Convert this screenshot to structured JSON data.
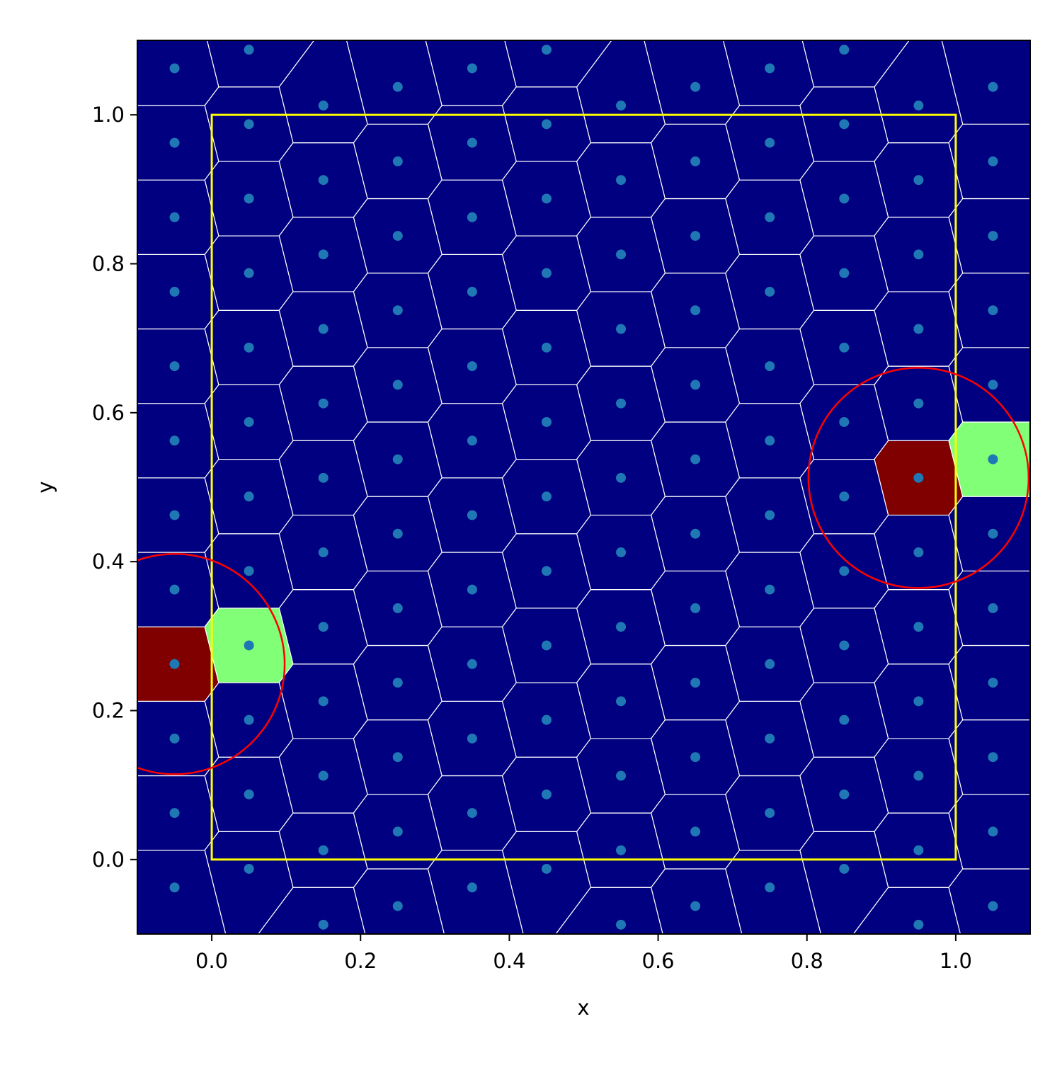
{
  "chart_data": {
    "type": "voronoi",
    "xlabel": "x",
    "ylabel": "y",
    "xlim": [
      -0.1,
      1.1
    ],
    "ylim": [
      -0.1,
      1.1
    ],
    "xticks": [
      {
        "value": 0,
        "label": "0.0"
      },
      0.2,
      0.4,
      0.6,
      0.8,
      {
        "value": 1,
        "label": "1.0"
      }
    ],
    "yticks": [
      {
        "value": 0,
        "label": "0.0"
      },
      0.2,
      0.4,
      0.6,
      0.8,
      {
        "value": 1,
        "label": "1.0"
      }
    ],
    "point_color": "#1f77b4",
    "edge_color": "#ffffff",
    "x": [
      -0.05,
      -0.05,
      -0.05,
      -0.05,
      -0.05,
      -0.05,
      -0.05,
      -0.05,
      -0.05,
      -0.05,
      -0.05,
      -0.05,
      0.05,
      0.05,
      0.05,
      0.05,
      0.05,
      0.05,
      0.05,
      0.05,
      0.05,
      0.05,
      0.05,
      0.05,
      0.15,
      0.15,
      0.15,
      0.15,
      0.15,
      0.15,
      0.15,
      0.15,
      0.15,
      0.15,
      0.15,
      0.15,
      0.25,
      0.25,
      0.25,
      0.25,
      0.25,
      0.25,
      0.25,
      0.25,
      0.25,
      0.25,
      0.25,
      0.25,
      0.35,
      0.35,
      0.35,
      0.35,
      0.35,
      0.35,
      0.35,
      0.35,
      0.35,
      0.35,
      0.35,
      0.35,
      0.45,
      0.45,
      0.45,
      0.45,
      0.45,
      0.45,
      0.45,
      0.45,
      0.45,
      0.45,
      0.45,
      0.45,
      0.55,
      0.55,
      0.55,
      0.55,
      0.55,
      0.55,
      0.55,
      0.55,
      0.55,
      0.55,
      0.55,
      0.55,
      0.65,
      0.65,
      0.65,
      0.65,
      0.65,
      0.65,
      0.65,
      0.65,
      0.65,
      0.65,
      0.65,
      0.65,
      0.75,
      0.75,
      0.75,
      0.75,
      0.75,
      0.75,
      0.75,
      0.75,
      0.75,
      0.75,
      0.75,
      0.75,
      0.85,
      0.85,
      0.85,
      0.85,
      0.85,
      0.85,
      0.85,
      0.85,
      0.85,
      0.85,
      0.85,
      0.85,
      0.95,
      0.95,
      0.95,
      0.95,
      0.95,
      0.95,
      0.95,
      0.95,
      0.95,
      0.95,
      0.95,
      0.95,
      1.05,
      1.05,
      1.05,
      1.05,
      1.05,
      1.05,
      1.05,
      1.05,
      1.05,
      1.05,
      1.05,
      1.05
    ],
    "y": [
      -0.0375,
      0.0625,
      0.1625,
      0.2625,
      0.3625,
      0.4625,
      0.5625,
      0.6625,
      0.7625,
      0.8625,
      0.9625,
      1.0625,
      -0.0125,
      0.0875,
      0.1875,
      0.2875,
      0.3875,
      0.4875,
      0.5875,
      0.6875,
      0.7875,
      0.8875,
      0.9875,
      1.0875,
      -0.0875,
      0.0125,
      0.1125,
      0.2125,
      0.3125,
      0.4125,
      0.5125,
      0.6125,
      0.7125,
      0.8125,
      0.9125,
      1.0125,
      -0.0625,
      0.0375,
      0.1375,
      0.2375,
      0.3375,
      0.4375,
      0.5375,
      0.6375,
      0.7375,
      0.8375,
      0.9375,
      1.0375,
      -0.0375,
      0.0625,
      0.1625,
      0.2625,
      0.3625,
      0.4625,
      0.5625,
      0.6625,
      0.7625,
      0.8625,
      0.9625,
      1.0625,
      -0.0125,
      0.0875,
      0.1875,
      0.2875,
      0.3875,
      0.4875,
      0.5875,
      0.6875,
      0.7875,
      0.8875,
      0.9875,
      1.0875,
      -0.0875,
      0.0125,
      0.1125,
      0.2125,
      0.3125,
      0.4125,
      0.5125,
      0.6125,
      0.7125,
      0.8125,
      0.9125,
      1.0125,
      -0.0625,
      0.0375,
      0.1375,
      0.2375,
      0.3375,
      0.4375,
      0.5375,
      0.6375,
      0.7375,
      0.8375,
      0.9375,
      1.0375,
      -0.0375,
      0.0625,
      0.1625,
      0.2625,
      0.3625,
      0.4625,
      0.5625,
      0.6625,
      0.7625,
      0.8625,
      0.9625,
      1.0625,
      -0.0125,
      0.0875,
      0.1875,
      0.2875,
      0.3875,
      0.4875,
      0.5875,
      0.6875,
      0.7875,
      0.8875,
      0.9875,
      1.0875,
      -0.0875,
      0.0125,
      0.1125,
      0.2125,
      0.3125,
      0.4125,
      0.5125,
      0.6125,
      0.7125,
      0.8125,
      0.9125,
      1.0125,
      -0.0625,
      0.0375,
      0.1375,
      0.2375,
      0.3375,
      0.4375,
      0.5375,
      0.6375,
      0.7375,
      0.8375,
      0.9375,
      1.0375
    ],
    "cell_colors": [
      "#000080",
      "#000080",
      "#000080",
      "#800000",
      "#000080",
      "#000080",
      "#000080",
      "#000080",
      "#000080",
      "#000080",
      "#000080",
      "#000080",
      "#000080",
      "#000080",
      "#000080",
      "#80ff77",
      "#000080",
      "#000080",
      "#000080",
      "#000080",
      "#000080",
      "#000080",
      "#000080",
      "#000080",
      "#000080",
      "#000080",
      "#000080",
      "#000080",
      "#000080",
      "#000080",
      "#000080",
      "#000080",
      "#000080",
      "#000080",
      "#000080",
      "#000080",
      "#000080",
      "#000080",
      "#000080",
      "#000080",
      "#000080",
      "#000080",
      "#000080",
      "#000080",
      "#000080",
      "#000080",
      "#000080",
      "#000080",
      "#000080",
      "#000080",
      "#000080",
      "#000080",
      "#000080",
      "#000080",
      "#000080",
      "#000080",
      "#000080",
      "#000080",
      "#000080",
      "#000080",
      "#000080",
      "#000080",
      "#000080",
      "#000080",
      "#000080",
      "#000080",
      "#000080",
      "#000080",
      "#000080",
      "#000080",
      "#000080",
      "#000080",
      "#000080",
      "#000080",
      "#000080",
      "#000080",
      "#000080",
      "#000080",
      "#000080",
      "#000080",
      "#000080",
      "#000080",
      "#000080",
      "#000080",
      "#000080",
      "#000080",
      "#000080",
      "#000080",
      "#000080",
      "#000080",
      "#000080",
      "#000080",
      "#000080",
      "#000080",
      "#000080",
      "#000080",
      "#000080",
      "#000080",
      "#000080",
      "#000080",
      "#000080",
      "#000080",
      "#000080",
      "#000080",
      "#000080",
      "#000080",
      "#000080",
      "#000080",
      "#000080",
      "#000080",
      "#000080",
      "#000080",
      "#000080",
      "#000080",
      "#000080",
      "#000080",
      "#000080",
      "#000080",
      "#000080",
      "#000080",
      "#000080",
      "#000080",
      "#000080",
      "#000080",
      "#000080",
      "#000080",
      "#800000",
      "#000080",
      "#000080",
      "#000080",
      "#000080",
      "#000080",
      "#000080",
      "#000080",
      "#000080",
      "#000080",
      "#000080",
      "#000080",
      "#80ff77",
      "#000080",
      "#000080",
      "#000080",
      "#000080",
      "#000080"
    ],
    "box": {
      "xlim": [
        0,
        1
      ],
      "ylim": [
        0,
        1
      ],
      "color": "#ffff00"
    },
    "circles": [
      {
        "x": -0.05,
        "y": 0.2625,
        "r": 0.148,
        "color": "#ff0000"
      },
      {
        "x": 0.95,
        "y": 0.5125,
        "r": 0.148,
        "color": "#ff0000"
      }
    ]
  }
}
